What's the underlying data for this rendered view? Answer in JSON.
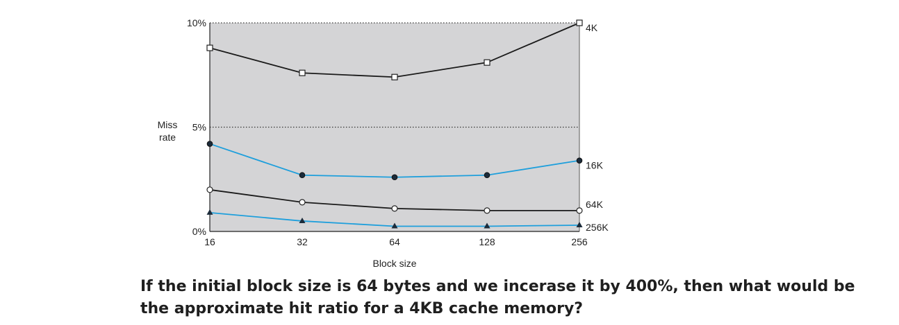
{
  "question": "If the initial block size is 64 bytes and we incerase it by 400%, then what would be the approximate hit ratio for a 4KB cache memory?",
  "chart_data": {
    "type": "line",
    "xlabel": "Block size",
    "ylabel": "Miss rate",
    "categories": [
      "16",
      "32",
      "64",
      "128",
      "256"
    ],
    "ytick_labels": [
      "0%",
      "5%",
      "10%"
    ],
    "ylim": [
      0,
      10
    ],
    "plot_background": "#d4d4d6",
    "gridlines_dotted_at": [
      5,
      10
    ],
    "series": [
      {
        "name": "4K",
        "values": [
          8.8,
          7.6,
          7.4,
          8.1,
          10.0
        ],
        "color": "#1a1a1a",
        "marker": "open-square"
      },
      {
        "name": "16K",
        "values": [
          4.2,
          2.7,
          2.6,
          2.7,
          3.4
        ],
        "color": "#1e9fdc",
        "marker": "filled-circle"
      },
      {
        "name": "64K",
        "values": [
          2.0,
          1.4,
          1.1,
          1.0,
          1.0
        ],
        "color": "#1a1a1a",
        "marker": "open-circle"
      },
      {
        "name": "256K",
        "values": [
          0.9,
          0.5,
          0.25,
          0.25,
          0.3
        ],
        "color": "#1e9fdc",
        "marker": "filled-triangle"
      }
    ]
  }
}
